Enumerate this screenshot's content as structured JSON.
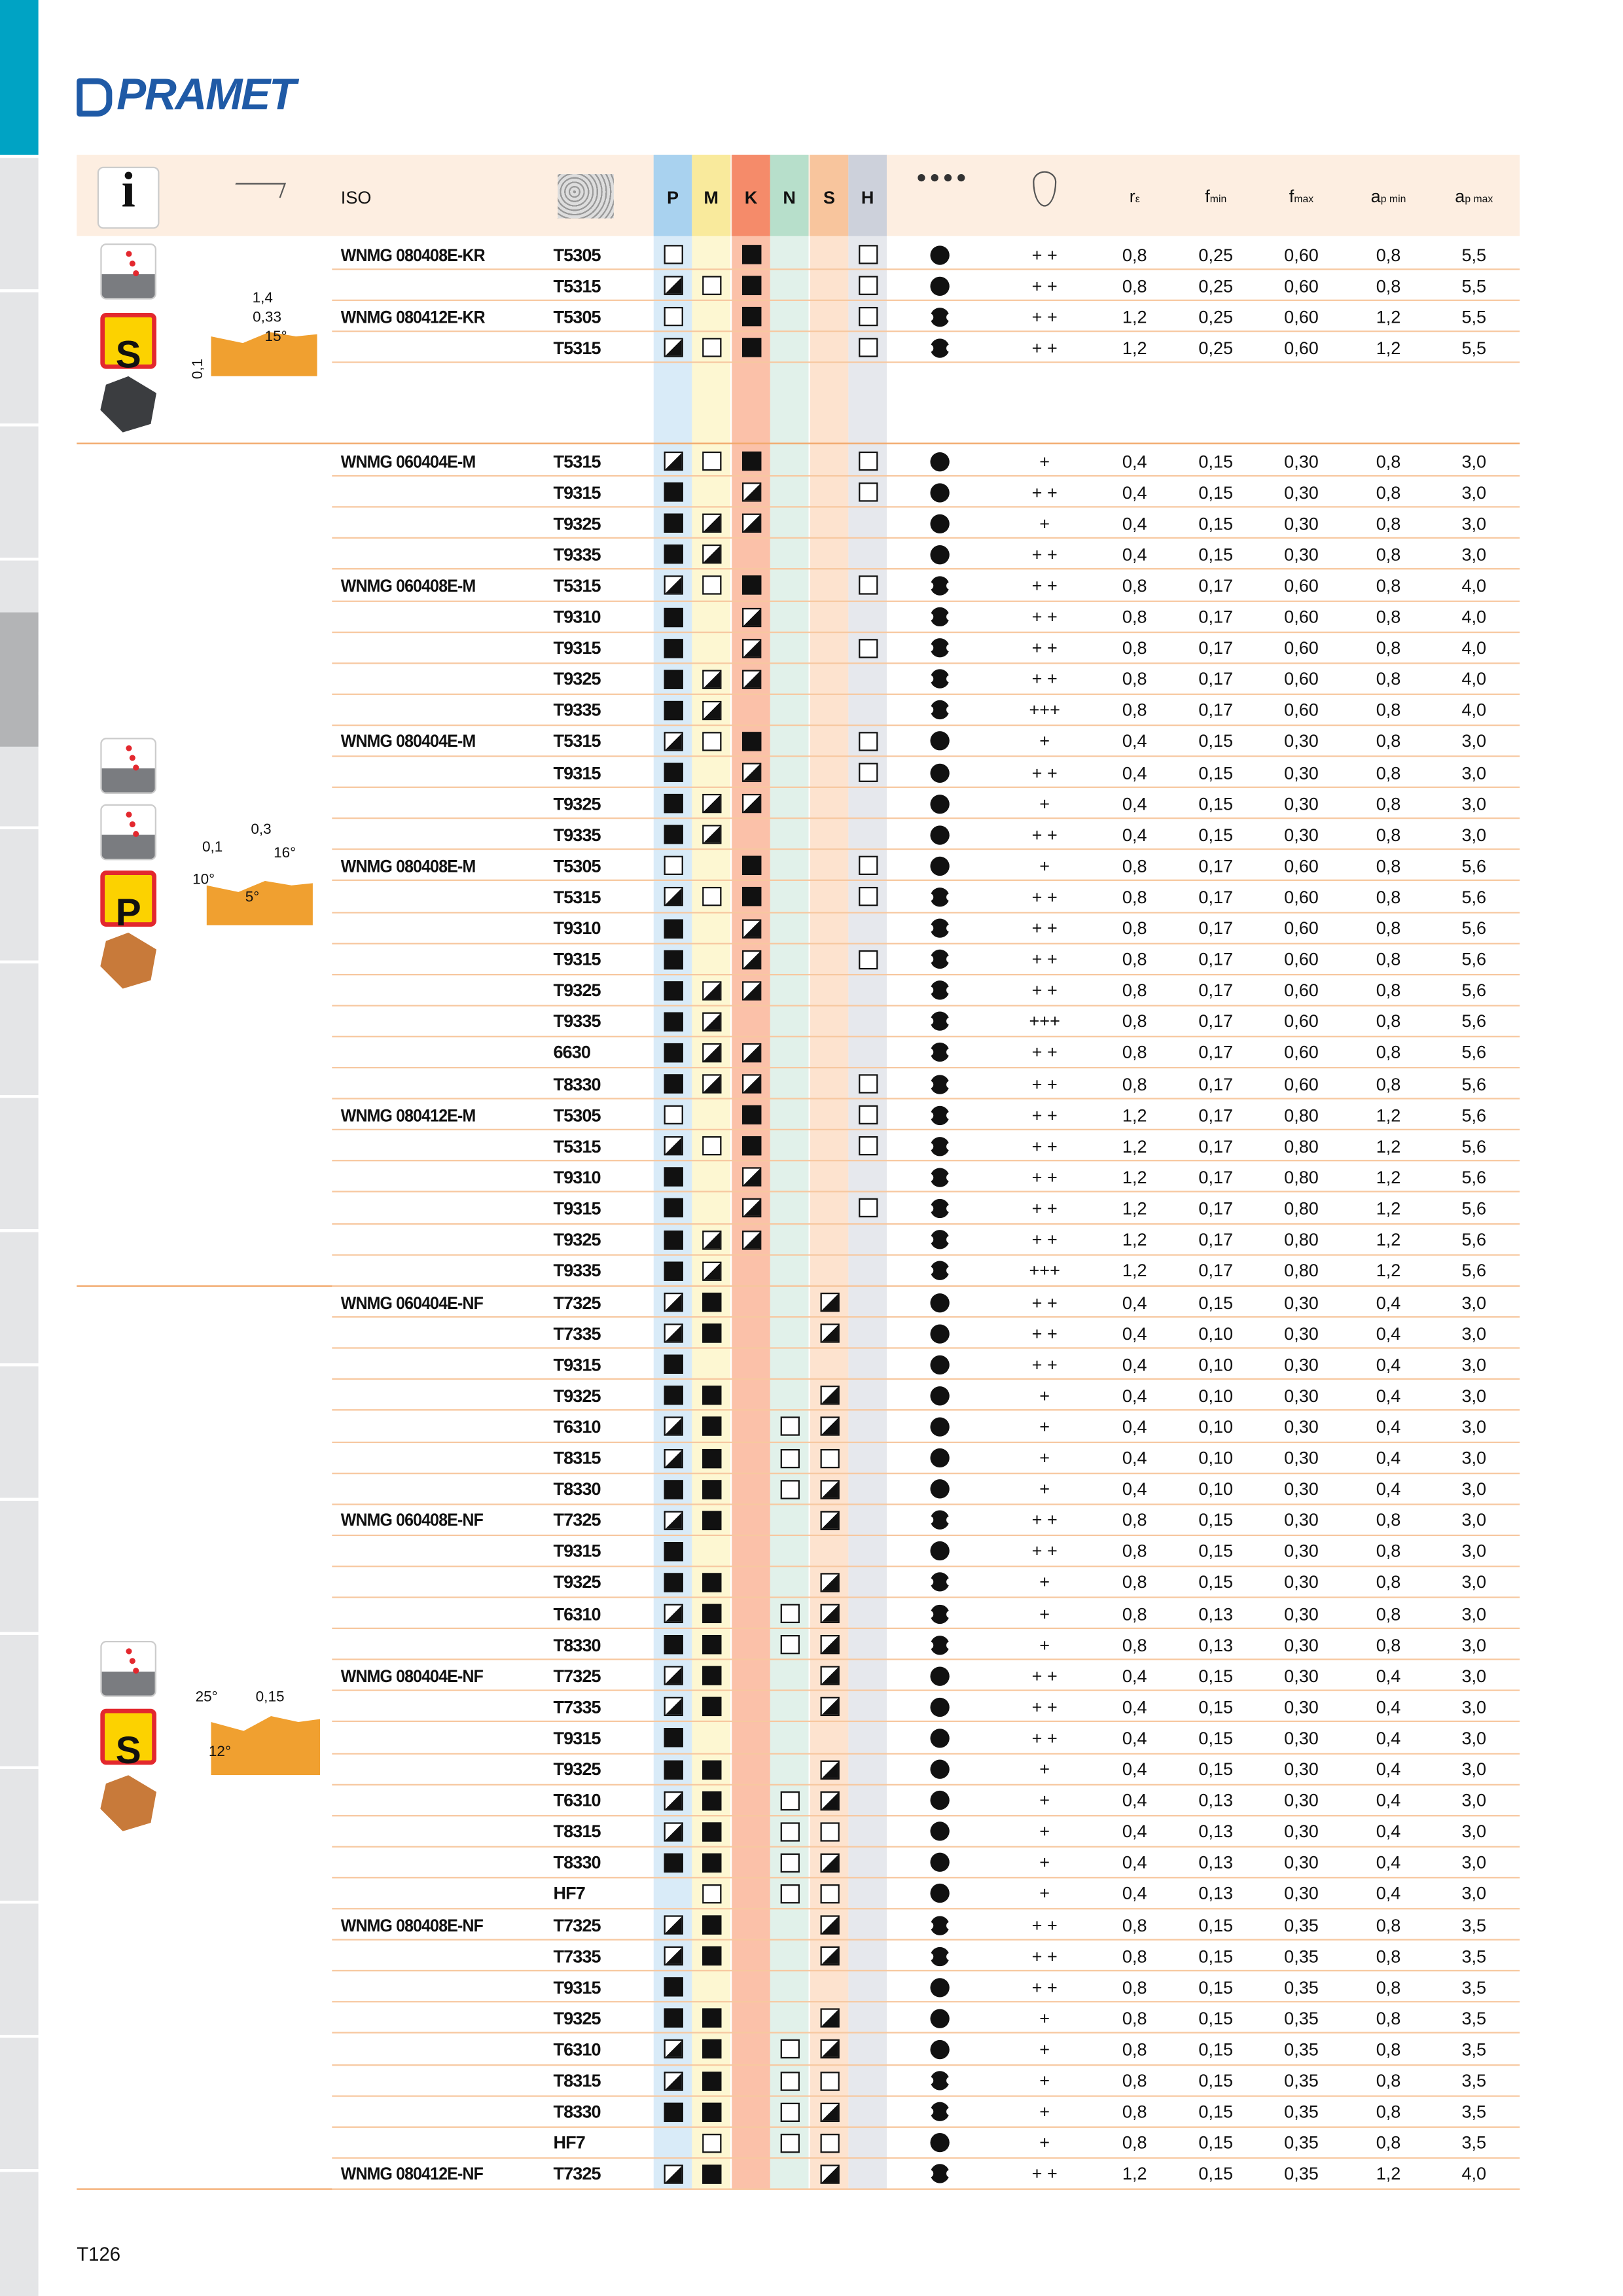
{
  "header": {
    "logo": "PRAMET",
    "page_number": "T126"
  },
  "table": {
    "columns": {
      "info": "i",
      "iso": "ISO",
      "p": "P",
      "m": "M",
      "k": "K",
      "n": "N",
      "s": "S",
      "h": "H",
      "r": {
        "main": "r",
        "sub": "ε"
      },
      "fmin": {
        "main": "f",
        "sub": "min"
      },
      "fmax": {
        "main": "f",
        "sub": "max"
      },
      "apmin": {
        "main": "a",
        "sub": "p min"
      },
      "apmax": {
        "main": "a",
        "sub": "p max"
      }
    },
    "groups": [
      {
        "icon_letter": "S",
        "diagram_labels": [
          "1,4",
          "0,33",
          "15°",
          "0,1"
        ],
        "rows": [
          [
            "WNMG 080408E-KR",
            "T5305",
            "e",
            null,
            "f",
            null,
            null,
            "e",
            "c",
            "+ +",
            "0,8",
            "0,25",
            "0,60",
            "0,8",
            "5,5"
          ],
          [
            null,
            "T5315",
            "h",
            "e",
            "f",
            null,
            null,
            "e",
            "c",
            "+ +",
            "0,8",
            "0,25",
            "0,60",
            "0,8",
            "5,5"
          ],
          [
            "WNMG 080412E-KR",
            "T5305",
            "e",
            null,
            "f",
            null,
            null,
            "e",
            "n",
            "+ +",
            "1,2",
            "0,25",
            "0,60",
            "1,2",
            "5,5"
          ],
          [
            null,
            "T5315",
            "h",
            "e",
            "f",
            null,
            null,
            "e",
            "n",
            "+ +",
            "1,2",
            "0,25",
            "0,60",
            "1,2",
            "5,5"
          ]
        ]
      },
      {
        "icon_letter": "P",
        "diagram_labels": [
          "0,1",
          "0,3",
          "16°",
          "10°",
          "5°"
        ],
        "rows": [
          [
            "WNMG 060404E-M",
            "T5315",
            "h",
            "e",
            "f",
            null,
            null,
            "e",
            "c",
            "+",
            "0,4",
            "0,15",
            "0,30",
            "0,8",
            "3,0"
          ],
          [
            null,
            "T9315",
            "f",
            null,
            "h",
            null,
            null,
            "e",
            "c",
            "+ +",
            "0,4",
            "0,15",
            "0,30",
            "0,8",
            "3,0"
          ],
          [
            null,
            "T9325",
            "f",
            "h",
            "h",
            null,
            null,
            null,
            "c",
            "+",
            "0,4",
            "0,15",
            "0,30",
            "0,8",
            "3,0"
          ],
          [
            null,
            "T9335",
            "f",
            "h",
            null,
            null,
            null,
            null,
            "c",
            "+ +",
            "0,4",
            "0,15",
            "0,30",
            "0,8",
            "3,0"
          ],
          [
            "WNMG 060408E-M",
            "T5315",
            "h",
            "e",
            "f",
            null,
            null,
            "e",
            "n",
            "+ +",
            "0,8",
            "0,17",
            "0,60",
            "0,8",
            "4,0"
          ],
          [
            null,
            "T9310",
            "f",
            null,
            "h",
            null,
            null,
            null,
            "n",
            "+ +",
            "0,8",
            "0,17",
            "0,60",
            "0,8",
            "4,0"
          ],
          [
            null,
            "T9315",
            "f",
            null,
            "h",
            null,
            null,
            "e",
            "n",
            "+ +",
            "0,8",
            "0,17",
            "0,60",
            "0,8",
            "4,0"
          ],
          [
            null,
            "T9325",
            "f",
            "h",
            "h",
            null,
            null,
            null,
            "n",
            "+ +",
            "0,8",
            "0,17",
            "0,60",
            "0,8",
            "4,0"
          ],
          [
            null,
            "T9335",
            "f",
            "h",
            null,
            null,
            null,
            null,
            "n",
            "+++",
            "0,8",
            "0,17",
            "0,60",
            "0,8",
            "4,0"
          ],
          [
            "WNMG 080404E-M",
            "T5315",
            "h",
            "e",
            "f",
            null,
            null,
            "e",
            "c",
            "+",
            "0,4",
            "0,15",
            "0,30",
            "0,8",
            "3,0"
          ],
          [
            null,
            "T9315",
            "f",
            null,
            "h",
            null,
            null,
            "e",
            "c",
            "+ +",
            "0,4",
            "0,15",
            "0,30",
            "0,8",
            "3,0"
          ],
          [
            null,
            "T9325",
            "f",
            "h",
            "h",
            null,
            null,
            null,
            "c",
            "+",
            "0,4",
            "0,15",
            "0,30",
            "0,8",
            "3,0"
          ],
          [
            null,
            "T9335",
            "f",
            "h",
            null,
            null,
            null,
            null,
            "c",
            "+ +",
            "0,4",
            "0,15",
            "0,30",
            "0,8",
            "3,0"
          ],
          [
            "WNMG 080408E-M",
            "T5305",
            "e",
            null,
            "f",
            null,
            null,
            "e",
            "c",
            "+",
            "0,8",
            "0,17",
            "0,60",
            "0,8",
            "5,6"
          ],
          [
            null,
            "T5315",
            "h",
            "e",
            "f",
            null,
            null,
            "e",
            "n",
            "+ +",
            "0,8",
            "0,17",
            "0,60",
            "0,8",
            "5,6"
          ],
          [
            null,
            "T9310",
            "f",
            null,
            "h",
            null,
            null,
            null,
            "n",
            "+ +",
            "0,8",
            "0,17",
            "0,60",
            "0,8",
            "5,6"
          ],
          [
            null,
            "T9315",
            "f",
            null,
            "h",
            null,
            null,
            "e",
            "n",
            "+ +",
            "0,8",
            "0,17",
            "0,60",
            "0,8",
            "5,6"
          ],
          [
            null,
            "T9325",
            "f",
            "h",
            "h",
            null,
            null,
            null,
            "n",
            "+ +",
            "0,8",
            "0,17",
            "0,60",
            "0,8",
            "5,6"
          ],
          [
            null,
            "T9335",
            "f",
            "h",
            null,
            null,
            null,
            null,
            "n",
            "+++",
            "0,8",
            "0,17",
            "0,60",
            "0,8",
            "5,6"
          ],
          [
            null,
            "6630",
            "f",
            "h",
            "h",
            null,
            null,
            null,
            "n",
            "+ +",
            "0,8",
            "0,17",
            "0,60",
            "0,8",
            "5,6"
          ],
          [
            null,
            "T8330",
            "f",
            "h",
            "h",
            null,
            null,
            "e",
            "n",
            "+ +",
            "0,8",
            "0,17",
            "0,60",
            "0,8",
            "5,6"
          ],
          [
            "WNMG 080412E-M",
            "T5305",
            "e",
            null,
            "f",
            null,
            null,
            "e",
            "n",
            "+ +",
            "1,2",
            "0,17",
            "0,80",
            "1,2",
            "5,6"
          ],
          [
            null,
            "T5315",
            "h",
            "e",
            "f",
            null,
            null,
            "e",
            "n",
            "+ +",
            "1,2",
            "0,17",
            "0,80",
            "1,2",
            "5,6"
          ],
          [
            null,
            "T9310",
            "f",
            null,
            "h",
            null,
            null,
            null,
            "n",
            "+ +",
            "1,2",
            "0,17",
            "0,80",
            "1,2",
            "5,6"
          ],
          [
            null,
            "T9315",
            "f",
            null,
            "h",
            null,
            null,
            "e",
            "n",
            "+ +",
            "1,2",
            "0,17",
            "0,80",
            "1,2",
            "5,6"
          ],
          [
            null,
            "T9325",
            "f",
            "h",
            "h",
            null,
            null,
            null,
            "n",
            "+ +",
            "1,2",
            "0,17",
            "0,80",
            "1,2",
            "5,6"
          ],
          [
            null,
            "T9335",
            "f",
            "h",
            null,
            null,
            null,
            null,
            "n",
            "+++",
            "1,2",
            "0,17",
            "0,80",
            "1,2",
            "5,6"
          ]
        ]
      },
      {
        "icon_letter": "S",
        "diagram_labels": [
          "25°",
          "0,15",
          "12°"
        ],
        "rows": [
          [
            "WNMG 060404E-NF",
            "T7325",
            "h",
            "f",
            null,
            null,
            "h",
            null,
            "c",
            "+ +",
            "0,4",
            "0,15",
            "0,30",
            "0,4",
            "3,0"
          ],
          [
            null,
            "T7335",
            "h",
            "f",
            null,
            null,
            "h",
            null,
            "c",
            "+ +",
            "0,4",
            "0,10",
            "0,30",
            "0,4",
            "3,0"
          ],
          [
            null,
            "T9315",
            "f",
            null,
            null,
            null,
            null,
            null,
            "c",
            "+ +",
            "0,4",
            "0,10",
            "0,30",
            "0,4",
            "3,0"
          ],
          [
            null,
            "T9325",
            "f",
            "f",
            null,
            null,
            "h",
            null,
            "c",
            "+",
            "0,4",
            "0,10",
            "0,30",
            "0,4",
            "3,0"
          ],
          [
            null,
            "T6310",
            "h",
            "f",
            null,
            "e",
            "h",
            null,
            "c",
            "+",
            "0,4",
            "0,10",
            "0,30",
            "0,4",
            "3,0"
          ],
          [
            null,
            "T8315",
            "h",
            "f",
            null,
            "e",
            "e",
            null,
            "c",
            "+",
            "0,4",
            "0,10",
            "0,30",
            "0,4",
            "3,0"
          ],
          [
            null,
            "T8330",
            "f",
            "f",
            null,
            "e",
            "h",
            null,
            "c",
            "+",
            "0,4",
            "0,10",
            "0,30",
            "0,4",
            "3,0"
          ],
          [
            "WNMG 060408E-NF",
            "T7325",
            "h",
            "f",
            null,
            null,
            "h",
            null,
            "n",
            "+ +",
            "0,8",
            "0,15",
            "0,30",
            "0,8",
            "3,0"
          ],
          [
            null,
            "T9315",
            "f",
            null,
            null,
            null,
            null,
            null,
            "c",
            "+ +",
            "0,8",
            "0,15",
            "0,30",
            "0,8",
            "3,0"
          ],
          [
            null,
            "T9325",
            "f",
            "f",
            null,
            null,
            "h",
            null,
            "n",
            "+",
            "0,8",
            "0,15",
            "0,30",
            "0,8",
            "3,0"
          ],
          [
            null,
            "T6310",
            "h",
            "f",
            null,
            "e",
            "h",
            null,
            "n",
            "+",
            "0,8",
            "0,13",
            "0,30",
            "0,8",
            "3,0"
          ],
          [
            null,
            "T8330",
            "f",
            "f",
            null,
            "e",
            "h",
            null,
            "n",
            "+",
            "0,8",
            "0,13",
            "0,30",
            "0,8",
            "3,0"
          ],
          [
            "WNMG 080404E-NF",
            "T7325",
            "h",
            "f",
            null,
            null,
            "h",
            null,
            "c",
            "+ +",
            "0,4",
            "0,15",
            "0,30",
            "0,4",
            "3,0"
          ],
          [
            null,
            "T7335",
            "h",
            "f",
            null,
            null,
            "h",
            null,
            "c",
            "+ +",
            "0,4",
            "0,15",
            "0,30",
            "0,4",
            "3,0"
          ],
          [
            null,
            "T9315",
            "f",
            null,
            null,
            null,
            null,
            null,
            "c",
            "+ +",
            "0,4",
            "0,15",
            "0,30",
            "0,4",
            "3,0"
          ],
          [
            null,
            "T9325",
            "f",
            "f",
            null,
            null,
            "h",
            null,
            "c",
            "+",
            "0,4",
            "0,15",
            "0,30",
            "0,4",
            "3,0"
          ],
          [
            null,
            "T6310",
            "h",
            "f",
            null,
            "e",
            "h",
            null,
            "c",
            "+",
            "0,4",
            "0,13",
            "0,30",
            "0,4",
            "3,0"
          ],
          [
            null,
            "T8315",
            "h",
            "f",
            null,
            "e",
            "e",
            null,
            "c",
            "+",
            "0,4",
            "0,13",
            "0,30",
            "0,4",
            "3,0"
          ],
          [
            null,
            "T8330",
            "f",
            "f",
            null,
            "e",
            "h",
            null,
            "c",
            "+",
            "0,4",
            "0,13",
            "0,30",
            "0,4",
            "3,0"
          ],
          [
            null,
            "HF7",
            null,
            "e",
            null,
            "e",
            "e",
            null,
            "c",
            "+",
            "0,4",
            "0,13",
            "0,30",
            "0,4",
            "3,0"
          ],
          [
            "WNMG 080408E-NF",
            "T7325",
            "h",
            "f",
            null,
            null,
            "h",
            null,
            "n",
            "+ +",
            "0,8",
            "0,15",
            "0,35",
            "0,8",
            "3,5"
          ],
          [
            null,
            "T7335",
            "h",
            "f",
            null,
            null,
            "h",
            null,
            "n",
            "+ +",
            "0,8",
            "0,15",
            "0,35",
            "0,8",
            "3,5"
          ],
          [
            null,
            "T9315",
            "f",
            null,
            null,
            null,
            null,
            null,
            "c",
            "+ +",
            "0,8",
            "0,15",
            "0,35",
            "0,8",
            "3,5"
          ],
          [
            null,
            "T9325",
            "f",
            "f",
            null,
            null,
            "h",
            null,
            "c",
            "+",
            "0,8",
            "0,15",
            "0,35",
            "0,8",
            "3,5"
          ],
          [
            null,
            "T6310",
            "h",
            "f",
            null,
            "e",
            "h",
            null,
            "c",
            "+",
            "0,8",
            "0,15",
            "0,35",
            "0,8",
            "3,5"
          ],
          [
            null,
            "T8315",
            "h",
            "f",
            null,
            "e",
            "e",
            null,
            "n",
            "+",
            "0,8",
            "0,15",
            "0,35",
            "0,8",
            "3,5"
          ],
          [
            null,
            "T8330",
            "f",
            "f",
            null,
            "e",
            "h",
            null,
            "n",
            "+",
            "0,8",
            "0,15",
            "0,35",
            "0,8",
            "3,5"
          ],
          [
            null,
            "HF7",
            null,
            "e",
            null,
            "e",
            "e",
            null,
            "c",
            "+",
            "0,8",
            "0,15",
            "0,35",
            "0,8",
            "3,5"
          ],
          [
            "WNMG 080412E-NF",
            "T7325",
            "h",
            "f",
            null,
            null,
            "h",
            null,
            "n",
            "+ +",
            "1,2",
            "0,15",
            "0,35",
            "1,2",
            "4,0"
          ]
        ]
      }
    ]
  }
}
